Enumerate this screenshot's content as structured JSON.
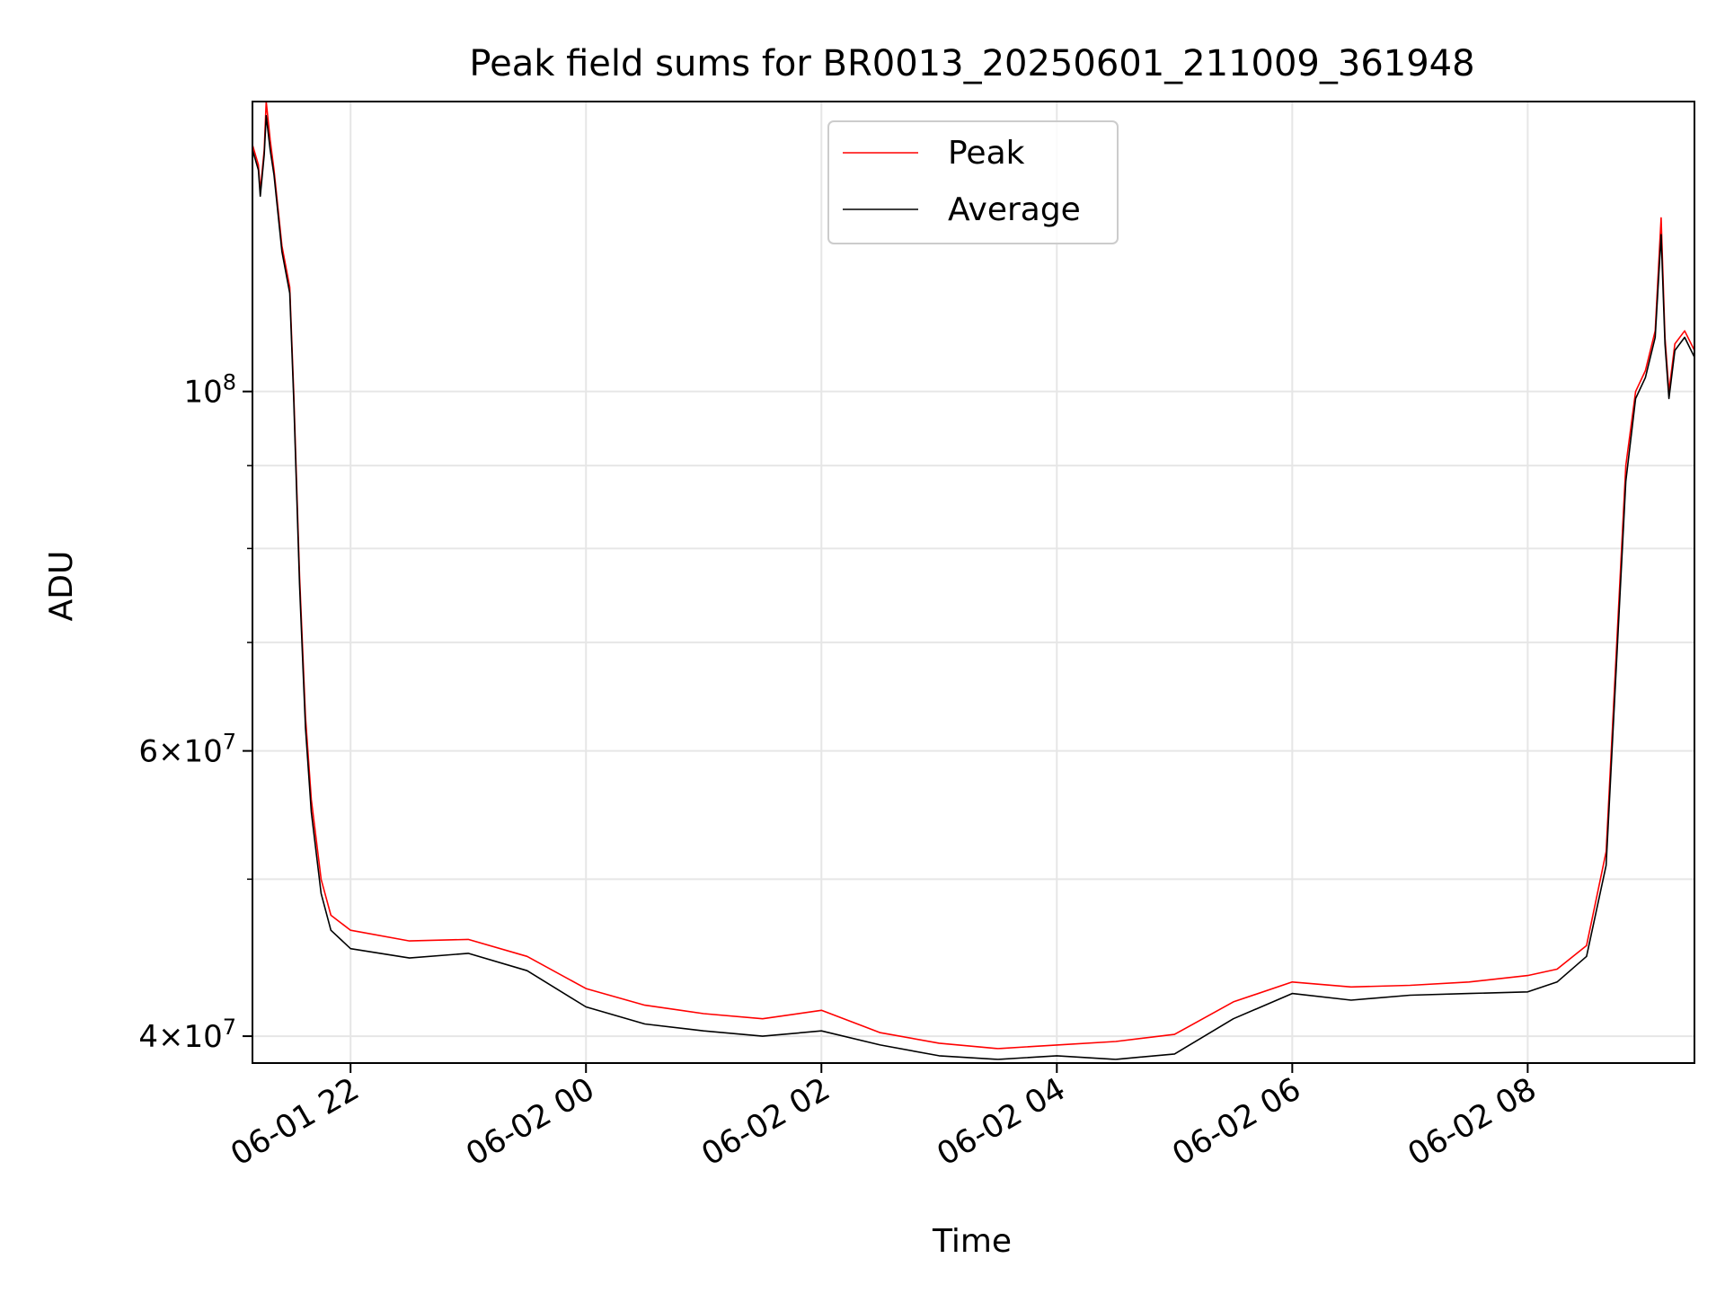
{
  "chart_data": {
    "type": "line",
    "title": "Peak field sums for BR0013_20250601_211009_361948",
    "xlabel": "Time",
    "ylabel": "ADU",
    "yscale": "log",
    "grid": true,
    "legend_position": "upper center",
    "xlim": [
      "2025-06-01 21:10",
      "2025-06-02 09:25"
    ],
    "ylim": [
      38500000,
      151000000
    ],
    "x_ticks": [
      {
        "value": "2025-06-01 22:00",
        "label": "06-01 22"
      },
      {
        "value": "2025-06-02 00:00",
        "label": "06-02 00"
      },
      {
        "value": "2025-06-02 02:00",
        "label": "06-02 02"
      },
      {
        "value": "2025-06-02 04:00",
        "label": "06-02 04"
      },
      {
        "value": "2025-06-02 06:00",
        "label": "06-02 06"
      },
      {
        "value": "2025-06-02 08:00",
        "label": "06-02 08"
      }
    ],
    "y_major_ticks": [
      {
        "value": 40000000,
        "mantissa": "4",
        "exp": "7"
      },
      {
        "value": 60000000,
        "mantissa": "6",
        "exp": "7"
      },
      {
        "value": 100000000,
        "mantissa": "",
        "exp": "8"
      }
    ],
    "y_minor_ticks": [
      50000000,
      70000000,
      80000000,
      90000000
    ],
    "series": [
      {
        "name": "Peak",
        "color": "#ff0000",
        "points": [
          [
            "2025-06-01 21:10",
            142000000
          ],
          [
            "2025-06-01 21:13",
            138000000
          ],
          [
            "2025-06-01 21:14",
            133000000
          ],
          [
            "2025-06-01 21:16",
            141000000
          ],
          [
            "2025-06-01 21:17",
            151000000
          ],
          [
            "2025-06-01 21:19",
            143000000
          ],
          [
            "2025-06-01 21:21",
            137000000
          ],
          [
            "2025-06-01 21:25",
            123000000
          ],
          [
            "2025-06-01 21:29",
            116000000
          ],
          [
            "2025-06-01 21:31",
            100000000
          ],
          [
            "2025-06-01 21:34",
            77000000
          ],
          [
            "2025-06-01 21:37",
            63000000
          ],
          [
            "2025-06-01 21:40",
            56000000
          ],
          [
            "2025-06-01 21:45",
            50000000
          ],
          [
            "2025-06-01 21:50",
            47500000
          ],
          [
            "2025-06-01 22:00",
            46500000
          ],
          [
            "2025-06-01 22:30",
            45800000
          ],
          [
            "2025-06-01 23:00",
            45900000
          ],
          [
            "2025-06-01 23:30",
            44800000
          ],
          [
            "2025-06-02 00:00",
            42800000
          ],
          [
            "2025-06-02 00:30",
            41800000
          ],
          [
            "2025-06-02 01:00",
            41300000
          ],
          [
            "2025-06-02 01:30",
            41000000
          ],
          [
            "2025-06-02 02:00",
            41500000
          ],
          [
            "2025-06-02 02:30",
            40200000
          ],
          [
            "2025-06-02 03:00",
            39600000
          ],
          [
            "2025-06-02 03:30",
            39300000
          ],
          [
            "2025-06-02 04:00",
            39500000
          ],
          [
            "2025-06-02 04:30",
            39700000
          ],
          [
            "2025-06-02 05:00",
            40100000
          ],
          [
            "2025-06-02 05:30",
            42000000
          ],
          [
            "2025-06-02 06:00",
            43200000
          ],
          [
            "2025-06-02 06:30",
            42900000
          ],
          [
            "2025-06-02 07:00",
            43000000
          ],
          [
            "2025-06-02 07:30",
            43200000
          ],
          [
            "2025-06-02 08:00",
            43600000
          ],
          [
            "2025-06-02 08:15",
            44000000
          ],
          [
            "2025-06-02 08:30",
            45500000
          ],
          [
            "2025-06-02 08:40",
            52000000
          ],
          [
            "2025-06-02 08:50",
            90000000
          ],
          [
            "2025-06-02 08:55",
            100000000
          ],
          [
            "2025-06-02 09:00",
            103000000
          ],
          [
            "2025-06-02 09:05",
            109000000
          ],
          [
            "2025-06-02 09:08",
            128000000
          ],
          [
            "2025-06-02 09:10",
            108000000
          ],
          [
            "2025-06-02 09:12",
            100000000
          ],
          [
            "2025-06-02 09:15",
            107000000
          ],
          [
            "2025-06-02 09:20",
            109000000
          ],
          [
            "2025-06-02 09:25",
            106000000
          ]
        ]
      },
      {
        "name": "Average",
        "color": "#000000",
        "points": [
          [
            "2025-06-01 21:10",
            141000000
          ],
          [
            "2025-06-01 21:13",
            137000000
          ],
          [
            "2025-06-01 21:14",
            132000000
          ],
          [
            "2025-06-01 21:16",
            140000000
          ],
          [
            "2025-06-01 21:17",
            148000000
          ],
          [
            "2025-06-01 21:19",
            141000000
          ],
          [
            "2025-06-01 21:21",
            136000000
          ],
          [
            "2025-06-01 21:25",
            122000000
          ],
          [
            "2025-06-01 21:29",
            115000000
          ],
          [
            "2025-06-01 21:31",
            99000000
          ],
          [
            "2025-06-01 21:34",
            76000000
          ],
          [
            "2025-06-01 21:37",
            62000000
          ],
          [
            "2025-06-01 21:40",
            55000000
          ],
          [
            "2025-06-01 21:45",
            49000000
          ],
          [
            "2025-06-01 21:50",
            46500000
          ],
          [
            "2025-06-01 22:00",
            45300000
          ],
          [
            "2025-06-01 22:30",
            44700000
          ],
          [
            "2025-06-01 23:00",
            45000000
          ],
          [
            "2025-06-01 23:30",
            43900000
          ],
          [
            "2025-06-02 00:00",
            41700000
          ],
          [
            "2025-06-02 00:30",
            40700000
          ],
          [
            "2025-06-02 01:00",
            40300000
          ],
          [
            "2025-06-02 01:30",
            40000000
          ],
          [
            "2025-06-02 02:00",
            40300000
          ],
          [
            "2025-06-02 02:30",
            39500000
          ],
          [
            "2025-06-02 03:00",
            38900000
          ],
          [
            "2025-06-02 03:30",
            38700000
          ],
          [
            "2025-06-02 04:00",
            38900000
          ],
          [
            "2025-06-02 04:30",
            38700000
          ],
          [
            "2025-06-02 05:00",
            39000000
          ],
          [
            "2025-06-02 05:30",
            41000000
          ],
          [
            "2025-06-02 06:00",
            42500000
          ],
          [
            "2025-06-02 06:30",
            42100000
          ],
          [
            "2025-06-02 07:00",
            42400000
          ],
          [
            "2025-06-02 07:30",
            42500000
          ],
          [
            "2025-06-02 08:00",
            42600000
          ],
          [
            "2025-06-02 08:15",
            43200000
          ],
          [
            "2025-06-02 08:30",
            44800000
          ],
          [
            "2025-06-02 08:40",
            51000000
          ],
          [
            "2025-06-02 08:50",
            88000000
          ],
          [
            "2025-06-02 08:55",
            99000000
          ],
          [
            "2025-06-02 09:00",
            102000000
          ],
          [
            "2025-06-02 09:05",
            108000000
          ],
          [
            "2025-06-02 09:08",
            125000000
          ],
          [
            "2025-06-02 09:10",
            107000000
          ],
          [
            "2025-06-02 09:12",
            99000000
          ],
          [
            "2025-06-02 09:15",
            106000000
          ],
          [
            "2025-06-02 09:20",
            108000000
          ],
          [
            "2025-06-02 09:25",
            105000000
          ]
        ]
      }
    ]
  }
}
